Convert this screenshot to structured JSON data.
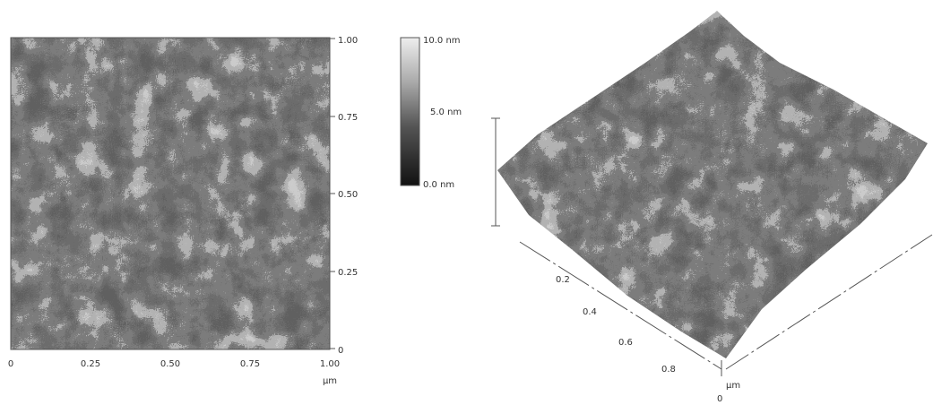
{
  "image_2d": {
    "y_ticks": [
      "1.00",
      "0.75",
      "0.50",
      "0.25",
      "0"
    ],
    "x_ticks": [
      "0",
      "0.25",
      "0.50",
      "0.75",
      "1.00"
    ],
    "x_unit": "µm"
  },
  "color_bar": {
    "labels": [
      "10.0 nm",
      "5.0 nm",
      "0.0 nm"
    ]
  },
  "surface_3d": {
    "axis_ticks": [
      "0.2",
      "0.4",
      "0.6",
      "0.8"
    ],
    "unit": "µm",
    "origin": "0"
  }
}
